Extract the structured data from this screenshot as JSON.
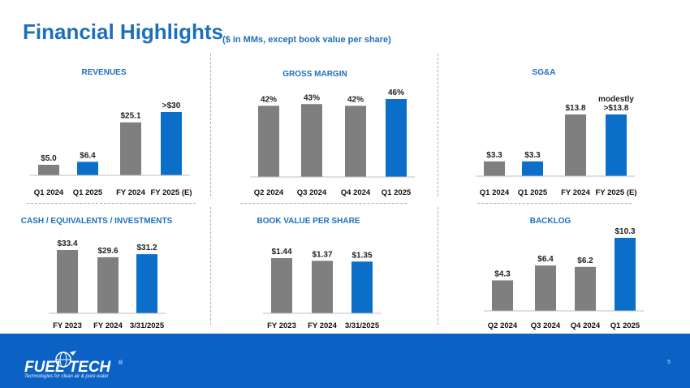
{
  "header": {
    "title": "Financial Highlights",
    "subtitle": "($ in MMs, except book value per share)"
  },
  "colors": {
    "accent": "#1d6fbb",
    "bar_gray": "#7f7f7f",
    "bar_blue": "#0b6fc9",
    "footer": "#0b62c4"
  },
  "chart_data": [
    {
      "id": "revenues",
      "type": "bar",
      "title": "REVENUES",
      "categories": [
        "Q1 2024",
        "Q1 2025",
        "FY 2024",
        "FY 2025 (E)"
      ],
      "values": [
        5.0,
        6.4,
        25.1,
        30
      ],
      "labels": [
        "$5.0",
        "$6.4",
        "$25.1",
        ">$30"
      ],
      "highlight": [
        false,
        true,
        false,
        true
      ],
      "ylim": [
        0,
        30
      ]
    },
    {
      "id": "gross-margin",
      "type": "bar",
      "title": "GROSS MARGIN",
      "categories": [
        "Q2 2024",
        "Q3 2024",
        "Q4 2024",
        "Q1 2025"
      ],
      "values": [
        42,
        43,
        42,
        46
      ],
      "labels": [
        "42%",
        "43%",
        "42%",
        "46%"
      ],
      "highlight": [
        false,
        false,
        false,
        true
      ],
      "ylim": [
        0,
        46
      ]
    },
    {
      "id": "sga",
      "type": "bar",
      "title": "SG&A",
      "categories": [
        "Q1 2024",
        "Q1 2025",
        "FY 2024",
        "FY 2025 (E)"
      ],
      "values": [
        3.3,
        3.3,
        13.8,
        13.8
      ],
      "labels": [
        "$3.3",
        "$3.3",
        "$13.8",
        "modestly\n>$13.8"
      ],
      "highlight": [
        false,
        true,
        false,
        true
      ],
      "ylim": [
        0,
        13.8
      ]
    },
    {
      "id": "cash",
      "type": "bar",
      "title": "CASH / EQUIVALENTS / INVESTMENTS",
      "categories": [
        "FY 2023",
        "FY 2024",
        "3/31/2025"
      ],
      "values": [
        33.4,
        29.6,
        31.2
      ],
      "labels": [
        "$33.4",
        "$29.6",
        "$31.2"
      ],
      "highlight": [
        false,
        false,
        true
      ],
      "ylim": [
        0,
        33.4
      ]
    },
    {
      "id": "book-value",
      "type": "bar",
      "title": "BOOK VALUE PER SHARE",
      "categories": [
        "FY 2023",
        "FY 2024",
        "3/31/2025"
      ],
      "values": [
        1.44,
        1.37,
        1.35
      ],
      "labels": [
        "$1.44",
        "$1.37",
        "$1.35"
      ],
      "highlight": [
        false,
        false,
        true
      ],
      "ylim": [
        0,
        1.44
      ]
    },
    {
      "id": "backlog",
      "type": "bar",
      "title": "BACKLOG",
      "categories": [
        "Q2 2024",
        "Q3 2024",
        "Q4 2024",
        "Q1 2025"
      ],
      "values": [
        4.3,
        6.4,
        6.2,
        10.3
      ],
      "labels": [
        "$4.3",
        "$6.4",
        "$6.2",
        "$10.3"
      ],
      "highlight": [
        false,
        false,
        false,
        true
      ],
      "ylim": [
        0,
        10.3
      ]
    }
  ],
  "footer": {
    "brand": "FUEL TECH",
    "trademark": "®",
    "tagline": "Technologies for clean air & pure water",
    "page_number": "5"
  }
}
